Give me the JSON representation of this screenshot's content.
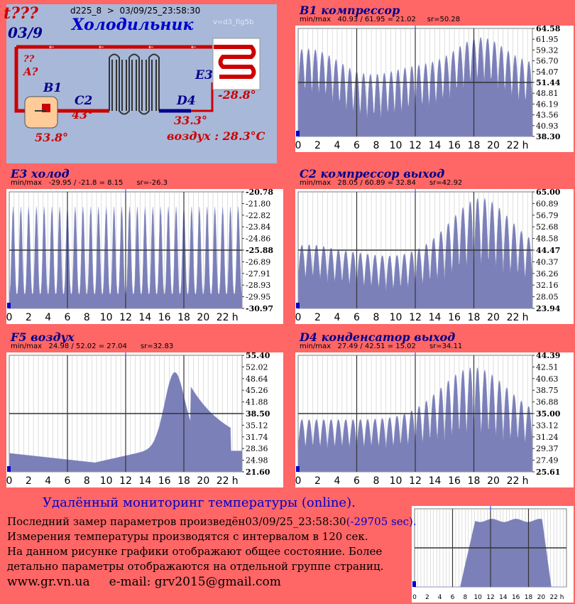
{
  "schematic": {
    "status_mark": "t???",
    "date_mark": "03/9",
    "device_line": "d225_8  >  03/09/25_23:58:30",
    "title": "Холодильник",
    "version": "v=d3_fig5b",
    "q1": "??",
    "q2": "A?",
    "label_b1": "B1",
    "label_c2": "C2",
    "label_e3": "E3",
    "label_d4": "D4",
    "val_b1": "53.8°",
    "val_c2": "43°",
    "val_e3": "-28.8°",
    "val_d4": "33.3°",
    "air": "воздух : 28.3°C",
    "colors": {
      "hot": "#cc0000",
      "cold": "#00008b",
      "background": "#a8b8d8"
    }
  },
  "chart_data": [
    {
      "type": "area",
      "title": "B1 компрессор",
      "minmax": "min/max   40.93 / 61.95 = 21.02     sr=50.28",
      "ylim": [
        38.3,
        64.58
      ],
      "y_ticks": [
        "64.58",
        "61.95",
        "59.32",
        "56.70",
        "54.07",
        "51.44",
        "48.81",
        "46.19",
        "43.56",
        "40.93",
        "38.30"
      ],
      "x_ticks": [
        "0",
        "2",
        "4",
        "6",
        "8",
        "10",
        "12",
        "14",
        "16",
        "18",
        "20",
        "22",
        "h"
      ],
      "grid": true
    },
    {
      "type": "area",
      "title": "E3 холод",
      "minmax": "min/max   -29.95 / -21.8 = 8.15      sr=-26.3",
      "ylim": [
        -30.97,
        -20.78
      ],
      "y_ticks": [
        "-20.78",
        "-21.80",
        "-22.82",
        "-23.84",
        "-24.86",
        "-25.88",
        "-26.89",
        "-27.91",
        "-28.93",
        "-29.95",
        "-30.97"
      ],
      "x_ticks": [
        "0",
        "2",
        "4",
        "6",
        "8",
        "10",
        "12",
        "14",
        "16",
        "18",
        "20",
        "22",
        "h"
      ],
      "grid": true
    },
    {
      "type": "area",
      "title": "C2 компрессор выход",
      "minmax": "min/max   28.05 / 60.89 = 32.84      sr=42.92",
      "ylim": [
        23.94,
        65.0
      ],
      "y_ticks": [
        "65.00",
        "60.89",
        "56.79",
        "52.68",
        "48.58",
        "44.47",
        "40.37",
        "36.26",
        "32.16",
        "28.05",
        "23.94"
      ],
      "x_ticks": [
        "0",
        "2",
        "4",
        "6",
        "8",
        "10",
        "12",
        "14",
        "16",
        "18",
        "20",
        "22",
        "h"
      ],
      "grid": true
    },
    {
      "type": "area",
      "title": "F5 воздух",
      "minmax": "min/max   24.98 / 52.02 = 27.04      sr=32.83",
      "ylim": [
        21.6,
        55.4
      ],
      "y_ticks": [
        "55.40",
        "52.02",
        "48.64",
        "45.26",
        "41.88",
        "38.50",
        "35.12",
        "31.74",
        "28.36",
        "24.98",
        "21.60"
      ],
      "x_ticks": [
        "0",
        "2",
        "4",
        "6",
        "8",
        "10",
        "12",
        "14",
        "16",
        "18",
        "20",
        "22",
        "h"
      ],
      "grid": true
    },
    {
      "type": "area",
      "title": "D4 конденсатор выход",
      "minmax": "min/max   27.49 / 42.51 = 15.02      sr=34.11",
      "ylim": [
        25.61,
        44.39
      ],
      "y_ticks": [
        "44.39",
        "42.51",
        "40.63",
        "38.75",
        "36.88",
        "35.00",
        "33.12",
        "31.24",
        "29.37",
        "27.49",
        "25.61"
      ],
      "x_ticks": [
        "0",
        "2",
        "4",
        "6",
        "8",
        "10",
        "12",
        "14",
        "16",
        "18",
        "20",
        "22",
        "h"
      ],
      "grid": true
    },
    {
      "type": "area",
      "title": "",
      "minmax": "",
      "ylim": [
        0,
        1
      ],
      "y_ticks": [],
      "x_ticks": [
        "0",
        "2",
        "4",
        "6",
        "8",
        "10",
        "12",
        "14",
        "16",
        "18",
        "20",
        "22",
        "h"
      ],
      "grid": true
    }
  ],
  "footer": {
    "title": "Удалённый мониторинг температуры (online).",
    "line1": "Последний замер параметров произведён03/09/25_23:58:30",
    "line1_extra": "(-29705 sec).",
    "line2": "Измерения температуры  производятся с интервалом в 120 сек.",
    "line3": "На данном рисунке графики отображают общее состояние. Более",
    "line4": "детально параметры отображаются на отдельной группе страниц.",
    "contact": "www.gr.vn.ua     e-mail: grv2015@gmail.com"
  }
}
